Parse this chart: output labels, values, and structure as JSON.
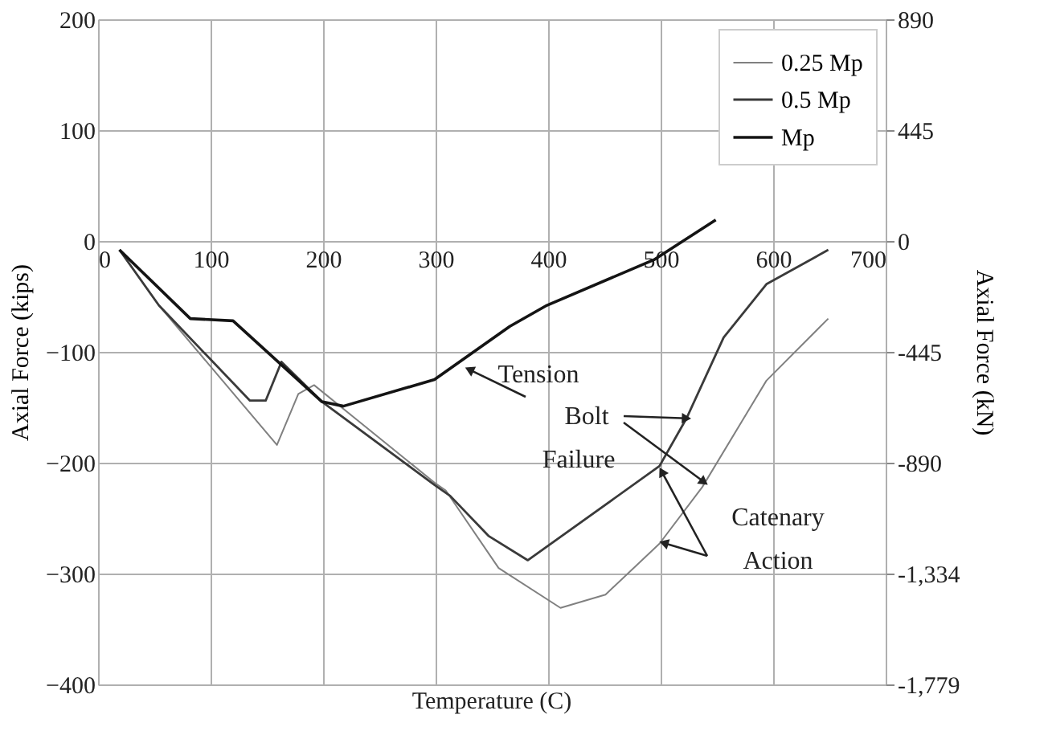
{
  "chart_data": {
    "type": "line",
    "xlabel": "Temperature (C)",
    "ylabel": "Axial Force (kips)",
    "y2label": "Axial Force (kN)",
    "xlim": [
      0,
      700
    ],
    "xticks": [
      0,
      100,
      200,
      300,
      400,
      500,
      600,
      700
    ],
    "ylim": [
      -400,
      200
    ],
    "yticks": [
      -400,
      -300,
      -200,
      -100,
      0,
      100,
      200
    ],
    "y2lim": [
      -1779,
      890
    ],
    "y2ticks": [
      {
        "value": -1779,
        "label": "-1,779"
      },
      {
        "value": -1334,
        "label": "-1,334"
      },
      {
        "value": -890,
        "label": "-890"
      },
      {
        "value": -445,
        "label": "-445"
      },
      {
        "value": 0,
        "label": "0"
      },
      {
        "value": 445,
        "label": "445"
      },
      {
        "value": 890,
        "label": "890"
      }
    ],
    "grid": true,
    "legend": "top right",
    "line_style": "solid",
    "marker": "none",
    "series": [
      {
        "name": "0.25 Mp",
        "color": "#808080",
        "x": [
          19,
          54,
          159,
          178,
          192,
          299,
          309,
          356,
          411,
          451,
          499,
          537,
          594,
          649
        ],
        "values": [
          -8,
          -58,
          -184,
          -138,
          -130,
          -218,
          -225,
          -295,
          -331,
          -319,
          -273,
          -222,
          -126,
          -70
        ]
      },
      {
        "name": "0.5 Mp",
        "color": "#3a3a3a",
        "x": [
          19,
          54,
          135,
          149,
          163,
          199,
          299,
          313,
          347,
          382,
          499,
          523,
          556,
          594,
          649
        ],
        "values": [
          -8,
          -58,
          -144,
          -144,
          -109,
          -145,
          -220,
          -230,
          -266,
          -288,
          -203,
          -160,
          -87,
          -39,
          -8
        ]
      },
      {
        "name": "Mp",
        "color": "#141414",
        "x": [
          19,
          82,
          120,
          199,
          218,
          299,
          366,
          399,
          494,
          549
        ],
        "values": [
          -8,
          -70,
          -72,
          -145,
          -149,
          -125,
          -77,
          -58,
          -17,
          19
        ]
      }
    ],
    "annotations": [
      {
        "text": "Tension",
        "x": 330,
        "y": -116
      },
      {
        "text": "Bolt Failure",
        "x": 523,
        "y": -160
      },
      {
        "text": "Catenary Action",
        "x": 501,
        "y": -208
      }
    ]
  }
}
